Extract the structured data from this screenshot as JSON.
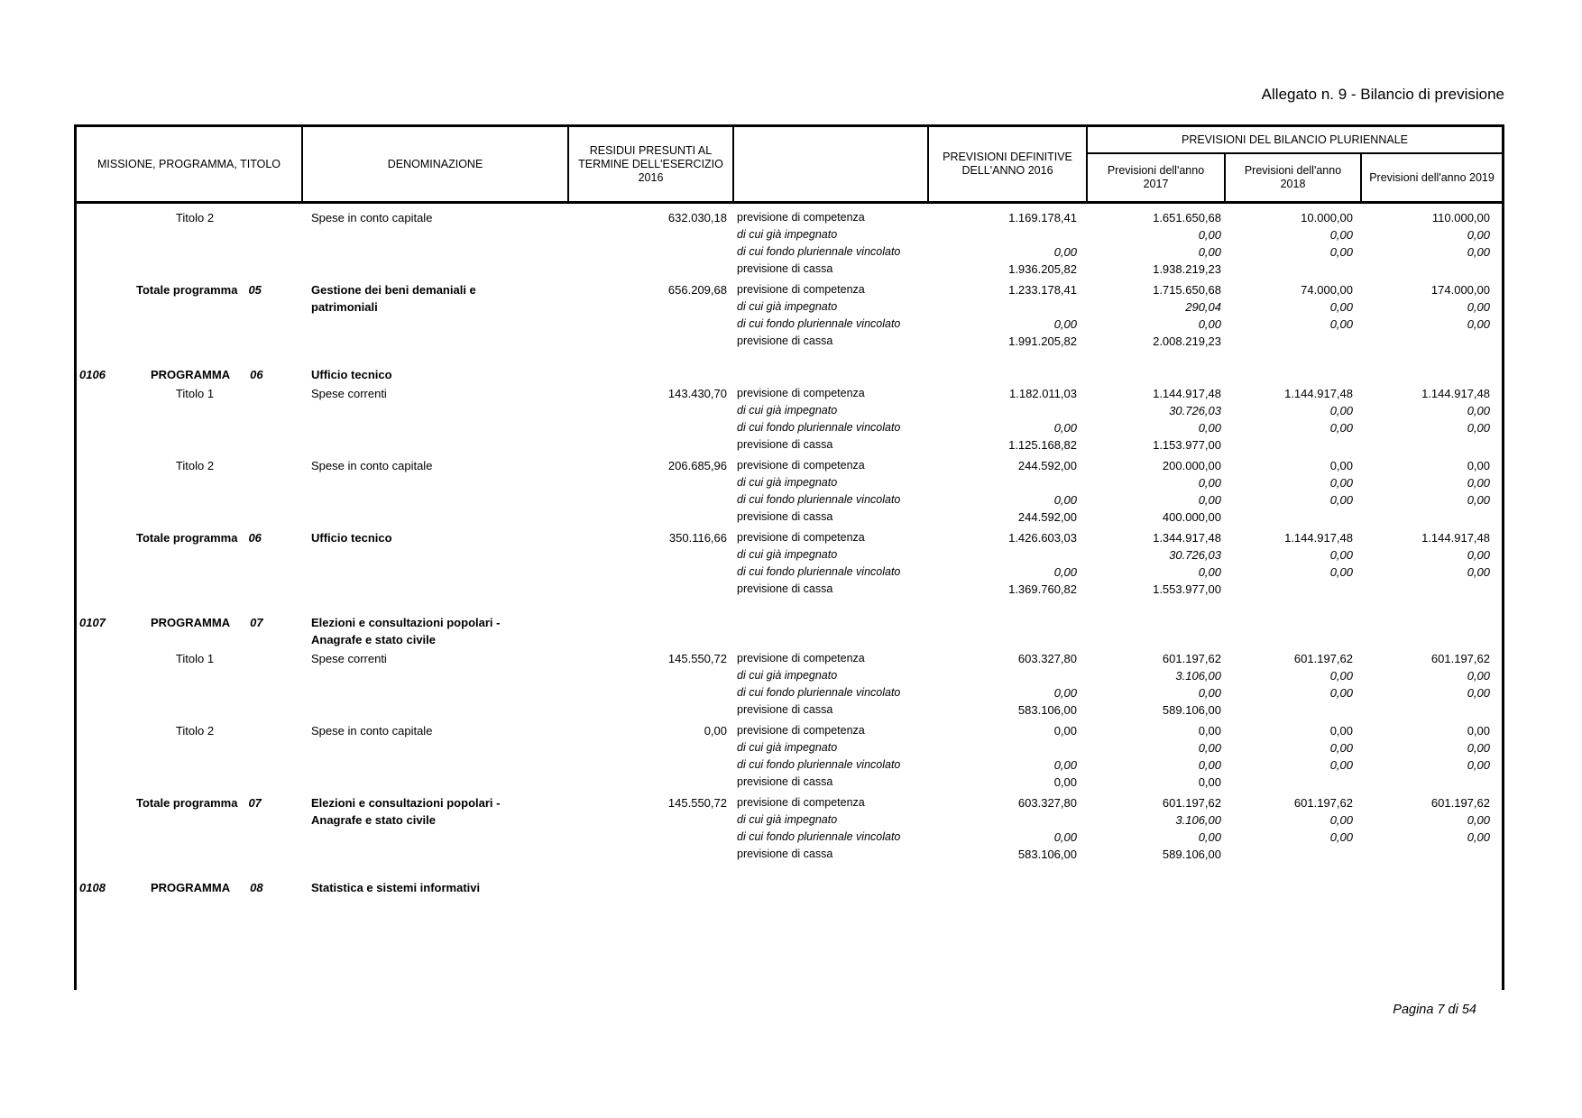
{
  "page": {
    "title": "Allegato n. 9 - Bilancio di previsione",
    "footer": "Pagina 7 di 54"
  },
  "header": {
    "col_missione": "MISSIONE, PROGRAMMA, TITOLO",
    "col_denominazione": "DENOMINAZIONE",
    "col_residui": "RESIDUI PRESUNTI AL TERMINE DELL'ESERCIZIO 2016",
    "col_prev_def": "PREVISIONI DEFINITIVE DELL'ANNO 2016",
    "col_pluriennale": "PREVISIONI DEL BILANCIO PLURIENNALE",
    "col_2017": "Previsioni dell'anno 2017",
    "col_2018": "Previsioni dell'anno 2018",
    "col_2019": "Previsioni dell'anno 2019"
  },
  "blocks": [
    {
      "type": "titolo",
      "label": "Titolo 2",
      "name": "Spese in conto capitale",
      "residui": "632.030,18",
      "rows": [
        {
          "label": "previsione di competenza",
          "italic": false,
          "v2016": "1.169.178,41",
          "v2017": "1.651.650,68",
          "v2018": "10.000,00",
          "v2019": "110.000,00"
        },
        {
          "label": "di cui già impegnato",
          "italic": true,
          "v2017": "0,00",
          "v2018": "0,00",
          "v2019": "0,00"
        },
        {
          "label": "di cui fondo pluriennale vincolato",
          "italic": true,
          "v2016": "0,00",
          "v2017": "0,00",
          "v2018": "0,00",
          "v2019": "0,00"
        },
        {
          "label": "previsione di cassa",
          "italic": false,
          "v2016": "1.936.205,82",
          "v2017": "1.938.219,23"
        }
      ]
    },
    {
      "type": "totale",
      "label": "Totale programma",
      "num": "05",
      "name": "Gestione dei beni demaniali e patrimoniali",
      "residui": "656.209,68",
      "rows": [
        {
          "label": "previsione di competenza",
          "italic": false,
          "v2016": "1.233.178,41",
          "v2017": "1.715.650,68",
          "v2018": "74.000,00",
          "v2019": "174.000,00"
        },
        {
          "label": "di cui già impegnato",
          "italic": true,
          "v2017": "290,04",
          "v2018": "0,00",
          "v2019": "0,00"
        },
        {
          "label": "di cui fondo pluriennale vincolato",
          "italic": true,
          "v2016": "0,00",
          "v2017": "0,00",
          "v2018": "0,00",
          "v2019": "0,00"
        },
        {
          "label": "previsione di cassa",
          "italic": false,
          "v2016": "1.991.205,82",
          "v2017": "2.008.219,23"
        }
      ]
    },
    {
      "type": "programma",
      "code": "0106",
      "label": "PROGRAMMA",
      "num": "06",
      "name": "Ufficio tecnico",
      "rows": []
    },
    {
      "type": "titolo",
      "label": "Titolo 1",
      "name": "Spese correnti",
      "residui": "143.430,70",
      "rows": [
        {
          "label": "previsione di competenza",
          "italic": false,
          "v2016": "1.182.011,03",
          "v2017": "1.144.917,48",
          "v2018": "1.144.917,48",
          "v2019": "1.144.917,48"
        },
        {
          "label": "di cui già impegnato",
          "italic": true,
          "v2017": "30.726,03",
          "v2018": "0,00",
          "v2019": "0,00"
        },
        {
          "label": "di cui fondo pluriennale vincolato",
          "italic": true,
          "v2016": "0,00",
          "v2017": "0,00",
          "v2018": "0,00",
          "v2019": "0,00"
        },
        {
          "label": "previsione di cassa",
          "italic": false,
          "v2016": "1.125.168,82",
          "v2017": "1.153.977,00"
        }
      ]
    },
    {
      "type": "titolo",
      "label": "Titolo 2",
      "name": "Spese in conto capitale",
      "residui": "206.685,96",
      "rows": [
        {
          "label": "previsione di competenza",
          "italic": false,
          "v2016": "244.592,00",
          "v2017": "200.000,00",
          "v2018": "0,00",
          "v2019": "0,00"
        },
        {
          "label": "di cui già impegnato",
          "italic": true,
          "v2017": "0,00",
          "v2018": "0,00",
          "v2019": "0,00"
        },
        {
          "label": "di cui fondo pluriennale vincolato",
          "italic": true,
          "v2016": "0,00",
          "v2017": "0,00",
          "v2018": "0,00",
          "v2019": "0,00"
        },
        {
          "label": "previsione di cassa",
          "italic": false,
          "v2016": "244.592,00",
          "v2017": "400.000,00"
        }
      ]
    },
    {
      "type": "totale",
      "label": "Totale programma",
      "num": "06",
      "name": "Ufficio tecnico",
      "residui": "350.116,66",
      "rows": [
        {
          "label": "previsione di competenza",
          "italic": false,
          "v2016": "1.426.603,03",
          "v2017": "1.344.917,48",
          "v2018": "1.144.917,48",
          "v2019": "1.144.917,48"
        },
        {
          "label": "di cui già impegnato",
          "italic": true,
          "v2017": "30.726,03",
          "v2018": "0,00",
          "v2019": "0,00"
        },
        {
          "label": "di cui fondo pluriennale vincolato",
          "italic": true,
          "v2016": "0,00",
          "v2017": "0,00",
          "v2018": "0,00",
          "v2019": "0,00"
        },
        {
          "label": "previsione di cassa",
          "italic": false,
          "v2016": "1.369.760,82",
          "v2017": "1.553.977,00"
        }
      ]
    },
    {
      "type": "programma",
      "code": "0107",
      "label": "PROGRAMMA",
      "num": "07",
      "name": "Elezioni e consultazioni popolari - Anagrafe e stato civile",
      "rows": []
    },
    {
      "type": "titolo",
      "label": "Titolo 1",
      "name": "Spese correnti",
      "residui": "145.550,72",
      "rows": [
        {
          "label": "previsione di competenza",
          "italic": false,
          "v2016": "603.327,80",
          "v2017": "601.197,62",
          "v2018": "601.197,62",
          "v2019": "601.197,62"
        },
        {
          "label": "di cui già impegnato",
          "italic": true,
          "v2017": "3.106,00",
          "v2018": "0,00",
          "v2019": "0,00"
        },
        {
          "label": "di cui fondo pluriennale vincolato",
          "italic": true,
          "v2016": "0,00",
          "v2017": "0,00",
          "v2018": "0,00",
          "v2019": "0,00"
        },
        {
          "label": "previsione di cassa",
          "italic": false,
          "v2016": "583.106,00",
          "v2017": "589.106,00"
        }
      ]
    },
    {
      "type": "titolo",
      "label": "Titolo 2",
      "name": "Spese in conto capitale",
      "residui": "0,00",
      "rows": [
        {
          "label": "previsione di competenza",
          "italic": false,
          "v2016": "0,00",
          "v2017": "0,00",
          "v2018": "0,00",
          "v2019": "0,00"
        },
        {
          "label": "di cui già impegnato",
          "italic": true,
          "v2017": "0,00",
          "v2018": "0,00",
          "v2019": "0,00"
        },
        {
          "label": "di cui fondo pluriennale vincolato",
          "italic": true,
          "v2016": "0,00",
          "v2017": "0,00",
          "v2018": "0,00",
          "v2019": "0,00"
        },
        {
          "label": "previsione di cassa",
          "italic": false,
          "v2016": "0,00",
          "v2017": "0,00"
        }
      ]
    },
    {
      "type": "totale",
      "label": "Totale programma",
      "num": "07",
      "name": "Elezioni e consultazioni popolari - Anagrafe e stato civile",
      "residui": "145.550,72",
      "rows": [
        {
          "label": "previsione di competenza",
          "italic": false,
          "v2016": "603.327,80",
          "v2017": "601.197,62",
          "v2018": "601.197,62",
          "v2019": "601.197,62"
        },
        {
          "label": "di cui già impegnato",
          "italic": true,
          "v2017": "3.106,00",
          "v2018": "0,00",
          "v2019": "0,00"
        },
        {
          "label": "di cui fondo pluriennale vincolato",
          "italic": true,
          "v2016": "0,00",
          "v2017": "0,00",
          "v2018": "0,00",
          "v2019": "0,00"
        },
        {
          "label": "previsione di cassa",
          "italic": false,
          "v2016": "583.106,00",
          "v2017": "589.106,00"
        }
      ]
    },
    {
      "type": "programma",
      "code": "0108",
      "label": "PROGRAMMA",
      "num": "08",
      "name": "Statistica e sistemi informativi",
      "rows": []
    }
  ]
}
